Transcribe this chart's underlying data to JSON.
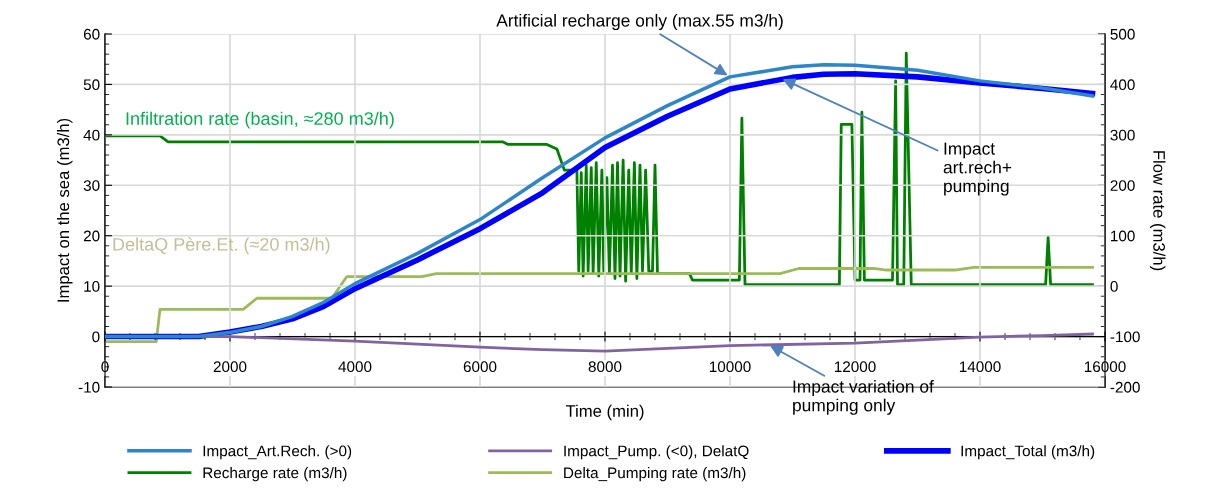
{
  "chart_data": {
    "type": "line",
    "xlabel": "Time (min)",
    "ylabel": "Impact on the sea (m3/h)",
    "y2label": "Flow rate (m3/h)",
    "xlim": [
      0,
      16000
    ],
    "xticks": [
      0,
      2000,
      4000,
      6000,
      8000,
      10000,
      12000,
      14000,
      16000
    ],
    "ylim": [
      -10,
      60
    ],
    "yticks": [
      -10,
      0,
      10,
      20,
      30,
      40,
      50,
      60
    ],
    "y2lim": [
      -200,
      500
    ],
    "y2ticks": [
      -200,
      -100,
      0,
      100,
      200,
      300,
      400,
      500
    ],
    "grid": true,
    "legend": "bottom",
    "marker": "none",
    "line_style": "solid",
    "annotations": [
      "Infiltration rate (basin, ≈280 m3/h)",
      "DeltaQ Père.Et. (≈20 m3/h)",
      {
        "text": "Artificial recharge only (max.55 m3/h)",
        "x": 10000,
        "y": 51.5
      },
      {
        "text": "Impact\nart.rech+\npumping",
        "x": 10800,
        "y": 51.3
      },
      {
        "text": "Impact variation of\npumping only",
        "x": 10600,
        "y": -1.5
      }
    ],
    "series": [
      {
        "name": "Impact_Art.Rech. (>0)",
        "color": "#2e86c8",
        "x": [
          0,
          1500,
          2000,
          2500,
          3000,
          3500,
          4000,
          5000,
          6000,
          7000,
          8000,
          9000,
          10000,
          11000,
          11500,
          12000,
          13000,
          14000,
          15000,
          15800
        ],
        "values": [
          0,
          0,
          0.8,
          2,
          4,
          6.8,
          10.5,
          16.5,
          23.2,
          31.5,
          39.4,
          45.8,
          51.5,
          53.5,
          53.9,
          53.8,
          52.8,
          50.7,
          49.3,
          47.7
        ]
      },
      {
        "name": "Impact_Pump. (<0), DelatQ",
        "color": "#8064a2",
        "x": [
          0,
          2000,
          4000,
          6000,
          7000,
          8000,
          10000,
          12000,
          13000,
          14000,
          15000,
          15800
        ],
        "values": [
          0,
          0,
          -0.9,
          -2.1,
          -2.6,
          -2.9,
          -1.8,
          -1.3,
          -0.7,
          -0.1,
          0.2,
          0.5
        ]
      },
      {
        "name": "Impact_Total (m3/h)",
        "color": "#0000ff",
        "x": [
          0,
          1500,
          2000,
          2500,
          3000,
          3500,
          4000,
          5000,
          6000,
          7000,
          8000,
          9000,
          10000,
          11000,
          11500,
          12000,
          13000,
          14000,
          15000,
          15800
        ],
        "values": [
          0,
          0,
          0.9,
          2,
          3.5,
          6,
          9.5,
          15.2,
          21.4,
          28.5,
          37.5,
          43.7,
          49.1,
          51.4,
          52,
          52.1,
          51.5,
          50.3,
          49.2,
          48.2
        ]
      },
      {
        "name": "Recharge rate (m3/h)",
        "color": "#008000",
        "axis": "y2",
        "x": [
          0,
          880,
          1010,
          6370,
          6450,
          7070,
          7230,
          7350,
          7470,
          7550,
          7580,
          7620,
          7650,
          7700,
          7730,
          7780,
          7810,
          7860,
          7900,
          7950,
          7980,
          8030,
          8070,
          8120,
          8160,
          8200,
          8240,
          8290,
          8330,
          8380,
          8420,
          8470,
          8510,
          8560,
          8600,
          8650,
          8700,
          8760,
          8800,
          8840,
          9350,
          9400,
          10150,
          10190,
          10240,
          11750,
          11780,
          11950,
          12000,
          12080,
          12110,
          12150,
          12600,
          12650,
          12680,
          12780,
          12820,
          12900,
          15050,
          15090,
          15130,
          15800
        ],
        "values": [
          298,
          298,
          286,
          286,
          281,
          281,
          272,
          230,
          230,
          230,
          30,
          225,
          20,
          240,
          30,
          235,
          25,
          245,
          20,
          230,
          30,
          215,
          25,
          240,
          15,
          245,
          20,
          250,
          10,
          230,
          25,
          245,
          15,
          240,
          30,
          230,
          30,
          30,
          240,
          25,
          25,
          12,
          12,
          333,
          3,
          3,
          321,
          321,
          12,
          12,
          345,
          12,
          12,
          407,
          3,
          3,
          462,
          3,
          3,
          97,
          3,
          3
        ]
      },
      {
        "name": "Delta_Pumping rate (m3/h)",
        "color": "#9bbb59",
        "axis": "y2",
        "x": [
          0,
          820,
          880,
          2210,
          2430,
          3630,
          3870,
          5070,
          5300,
          10800,
          11100,
          12300,
          12500,
          13600,
          13900,
          15800
        ],
        "values": [
          -110,
          -110,
          -46,
          -46,
          -24,
          -24,
          19,
          19,
          25,
          25,
          35,
          35,
          32,
          32,
          37,
          37
        ]
      }
    ]
  }
}
